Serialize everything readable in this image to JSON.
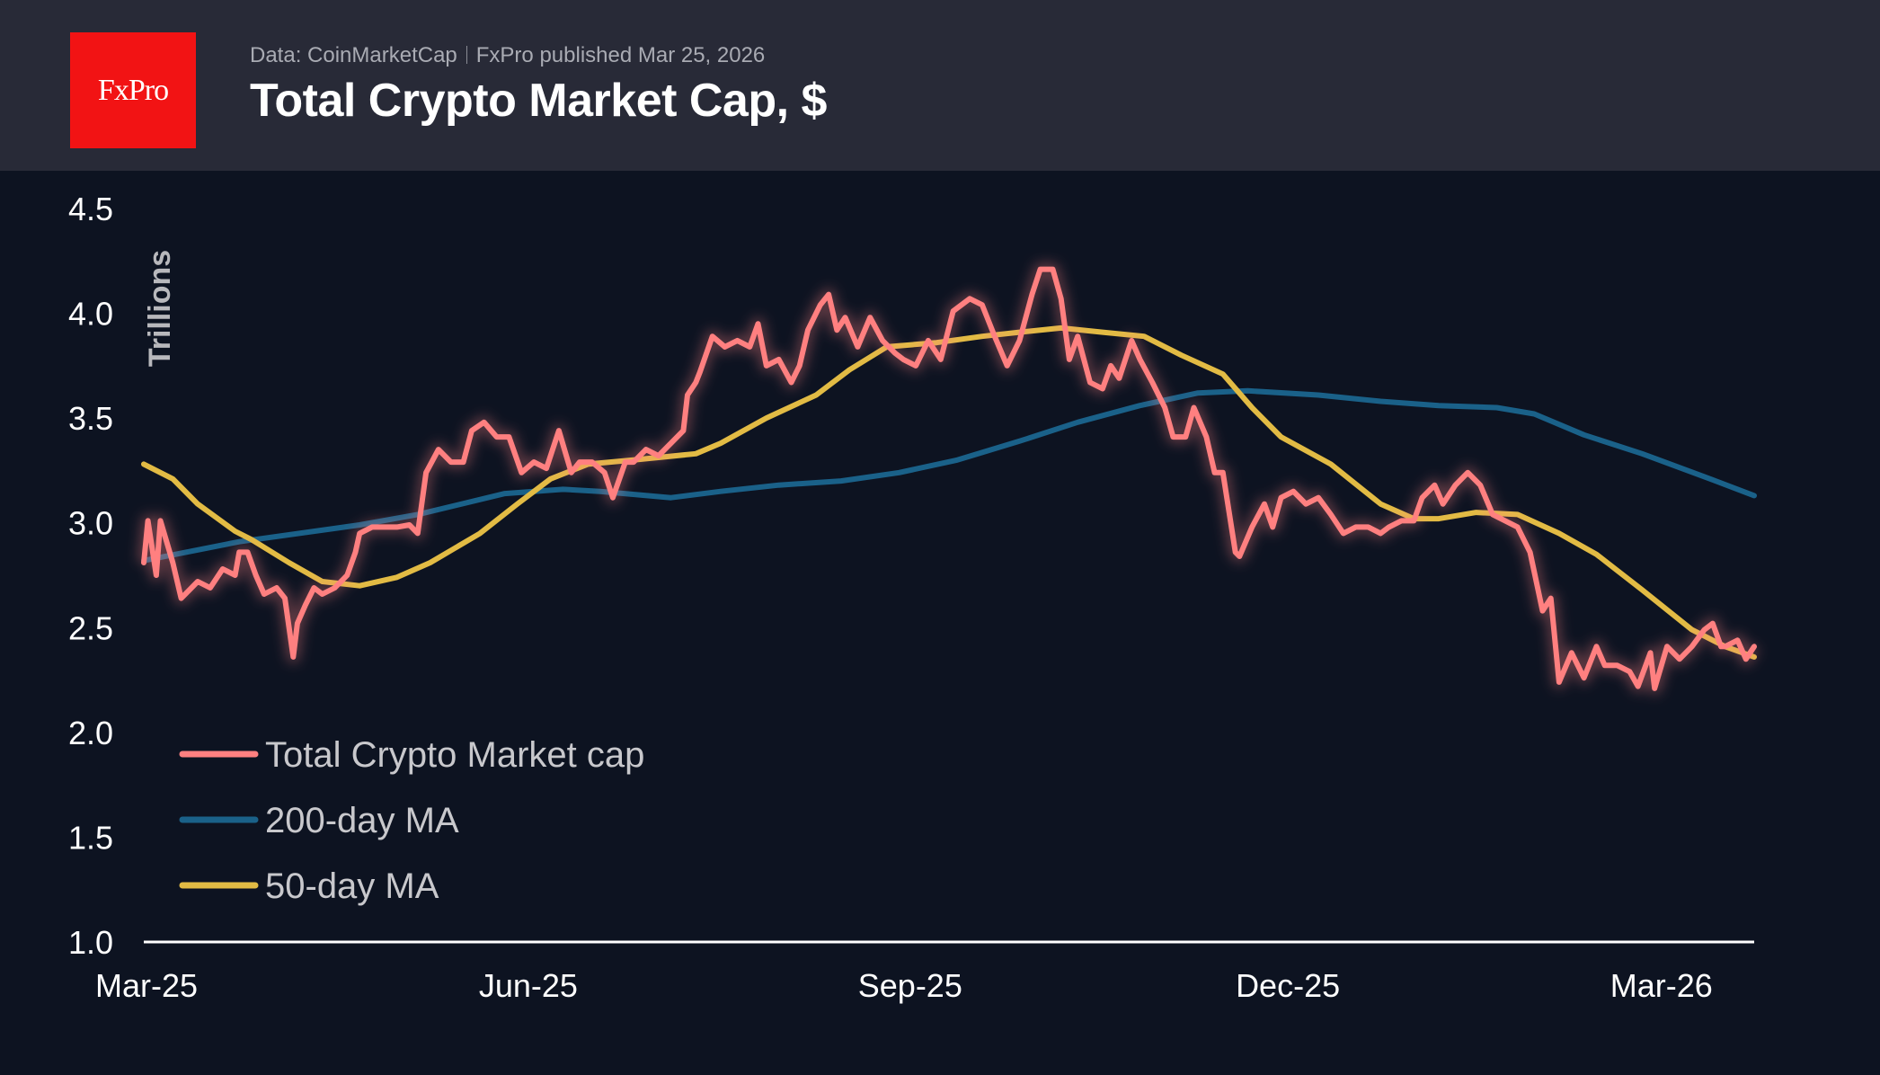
{
  "header": {
    "logo_text": "FxPro",
    "source": "Data: CoinMarketCap",
    "published": "FxPro published Mar 25, 2026",
    "title": "Total Crypto Market Cap, $"
  },
  "colors": {
    "header_bg": "#282a37",
    "background": "#0d1321",
    "logo": "#f21314"
  },
  "chart_data": {
    "type": "line",
    "title": "Total Crypto Market Cap, $",
    "xlabel": "",
    "ylabel": "Trillions",
    "ylim": [
      1.0,
      4.5
    ],
    "xlim": [
      "2025-03-01",
      "2026-03-24"
    ],
    "yticks": [
      "1.0",
      "1.5",
      "2.0",
      "2.5",
      "3.0",
      "3.5",
      "4.0",
      "4.5"
    ],
    "xticks": [
      {
        "label": "Mar-25",
        "date": "2025-03-01"
      },
      {
        "label": "Jun-25",
        "date": "2025-06-01"
      },
      {
        "label": "Sep-25",
        "date": "2025-09-01"
      },
      {
        "label": "Dec-25",
        "date": "2025-12-01"
      },
      {
        "label": "Mar-26",
        "date": "2026-03-01"
      }
    ],
    "grid": false,
    "legend_position": "bottom-left",
    "series": [
      {
        "name": "Total Crypto Market cap",
        "color": "#ff8080",
        "glow": true,
        "x": [
          "2025-03-01",
          "2025-03-02",
          "2025-03-04",
          "2025-03-05",
          "2025-03-08",
          "2025-03-10",
          "2025-03-11",
          "2025-03-14",
          "2025-03-17",
          "2025-03-20",
          "2025-03-23",
          "2025-03-24",
          "2025-03-26",
          "2025-03-28",
          "2025-03-30",
          "2025-04-02",
          "2025-04-04",
          "2025-04-06",
          "2025-04-07",
          "2025-04-09",
          "2025-04-11",
          "2025-04-13",
          "2025-04-16",
          "2025-04-19",
          "2025-04-21",
          "2025-04-22",
          "2025-04-25",
          "2025-04-28",
          "2025-05-01",
          "2025-05-04",
          "2025-05-06",
          "2025-05-08",
          "2025-05-11",
          "2025-05-14",
          "2025-05-17",
          "2025-05-19",
          "2025-05-22",
          "2025-05-25",
          "2025-05-28",
          "2025-05-31",
          "2025-06-03",
          "2025-06-06",
          "2025-06-09",
          "2025-06-12",
          "2025-06-14",
          "2025-06-17",
          "2025-06-20",
          "2025-06-22",
          "2025-06-25",
          "2025-06-27",
          "2025-06-30",
          "2025-07-03",
          "2025-07-06",
          "2025-07-09",
          "2025-07-10",
          "2025-07-12",
          "2025-07-13",
          "2025-07-16",
          "2025-07-19",
          "2025-07-22",
          "2025-07-25",
          "2025-07-27",
          "2025-07-29",
          "2025-08-01",
          "2025-08-04",
          "2025-08-06",
          "2025-08-08",
          "2025-08-11",
          "2025-08-13",
          "2025-08-15",
          "2025-08-17",
          "2025-08-20",
          "2025-08-23",
          "2025-08-26",
          "2025-08-29",
          "2025-08-31",
          "2025-09-03",
          "2025-09-06",
          "2025-09-09",
          "2025-09-12",
          "2025-09-16",
          "2025-09-19",
          "2025-09-22",
          "2025-09-25",
          "2025-09-28",
          "2025-10-01",
          "2025-10-03",
          "2025-10-06",
          "2025-10-08",
          "2025-10-10",
          "2025-10-12",
          "2025-10-15",
          "2025-10-18",
          "2025-10-20",
          "2025-10-22",
          "2025-10-25",
          "2025-10-27",
          "2025-10-30",
          "2025-11-02",
          "2025-11-04",
          "2025-11-07",
          "2025-11-09",
          "2025-11-12",
          "2025-11-14",
          "2025-11-16",
          "2025-11-19",
          "2025-11-20",
          "2025-11-23",
          "2025-11-26",
          "2025-11-28",
          "2025-11-30",
          "2025-12-03",
          "2025-12-06",
          "2025-12-09",
          "2025-12-12",
          "2025-12-15",
          "2025-12-18",
          "2025-12-21",
          "2025-12-24",
          "2025-12-26",
          "2025-12-29",
          "2026-01-01",
          "2026-01-03",
          "2026-01-06",
          "2026-01-08",
          "2026-01-11",
          "2026-01-14",
          "2026-01-17",
          "2026-01-20",
          "2026-01-23",
          "2026-01-26",
          "2026-01-29",
          "2026-02-01",
          "2026-02-03",
          "2026-02-05",
          "2026-02-08",
          "2026-02-11",
          "2026-02-14",
          "2026-02-16",
          "2026-02-19",
          "2026-02-22",
          "2026-02-24",
          "2026-02-27",
          "2026-02-28",
          "2026-03-03",
          "2026-03-06",
          "2026-03-09",
          "2026-03-12",
          "2026-03-14",
          "2026-03-16",
          "2026-03-17",
          "2026-03-20",
          "2026-03-22",
          "2026-03-24"
        ],
        "values": [
          2.81,
          3.01,
          2.75,
          3.01,
          2.81,
          2.64,
          2.66,
          2.72,
          2.69,
          2.78,
          2.75,
          2.86,
          2.86,
          2.75,
          2.66,
          2.69,
          2.64,
          2.36,
          2.52,
          2.61,
          2.69,
          2.66,
          2.69,
          2.75,
          2.86,
          2.95,
          2.98,
          2.98,
          2.98,
          2.99,
          2.95,
          3.24,
          3.35,
          3.29,
          3.29,
          3.44,
          3.48,
          3.41,
          3.41,
          3.24,
          3.29,
          3.26,
          3.44,
          3.24,
          3.29,
          3.29,
          3.24,
          3.12,
          3.29,
          3.29,
          3.35,
          3.32,
          3.38,
          3.44,
          3.61,
          3.67,
          3.72,
          3.89,
          3.84,
          3.87,
          3.84,
          3.95,
          3.75,
          3.78,
          3.67,
          3.75,
          3.92,
          4.04,
          4.09,
          3.92,
          3.98,
          3.84,
          3.98,
          3.87,
          3.81,
          3.78,
          3.75,
          3.87,
          3.78,
          4.01,
          4.07,
          4.04,
          3.89,
          3.75,
          3.87,
          4.09,
          4.21,
          4.21,
          4.07,
          3.78,
          3.89,
          3.67,
          3.64,
          3.75,
          3.69,
          3.87,
          3.78,
          3.67,
          3.55,
          3.41,
          3.41,
          3.55,
          3.41,
          3.24,
          3.24,
          2.86,
          2.84,
          2.98,
          3.09,
          2.98,
          3.12,
          3.15,
          3.09,
          3.12,
          3.04,
          2.95,
          2.98,
          2.98,
          2.95,
          2.98,
          3.01,
          3.01,
          3.12,
          3.18,
          3.09,
          3.18,
          3.24,
          3.18,
          3.04,
          3.01,
          2.98,
          2.86,
          2.58,
          2.64,
          2.24,
          2.38,
          2.26,
          2.41,
          2.32,
          2.32,
          2.29,
          2.22,
          2.38,
          2.21,
          2.41,
          2.35,
          2.41,
          2.49,
          2.52,
          2.41,
          2.41,
          2.44,
          2.35,
          2.41
        ]
      },
      {
        "name": "200-day MA",
        "color": "#1a6189",
        "glow": false,
        "x": [
          "2025-03-01",
          "2025-03-24",
          "2025-04-22",
          "2025-05-06",
          "2025-05-27",
          "2025-06-10",
          "2025-06-19",
          "2025-07-06",
          "2025-07-18",
          "2025-08-01",
          "2025-08-16",
          "2025-08-30",
          "2025-09-13",
          "2025-09-28",
          "2025-10-12",
          "2025-10-27",
          "2025-11-10",
          "2025-11-22",
          "2025-12-09",
          "2025-12-24",
          "2026-01-07",
          "2026-01-21",
          "2026-01-30",
          "2026-02-11",
          "2026-02-25",
          "2026-03-12",
          "2026-03-24"
        ],
        "values": [
          2.82,
          2.91,
          2.99,
          3.04,
          3.14,
          3.16,
          3.15,
          3.12,
          3.15,
          3.18,
          3.2,
          3.24,
          3.3,
          3.39,
          3.48,
          3.56,
          3.62,
          3.63,
          3.61,
          3.58,
          3.56,
          3.55,
          3.52,
          3.42,
          3.33,
          3.22,
          3.13
        ]
      },
      {
        "name": "50-day MA",
        "color": "#e2bb44",
        "glow": false,
        "x": [
          "2025-03-01",
          "2025-03-08",
          "2025-03-14",
          "2025-03-23",
          "2025-03-27",
          "2025-04-05",
          "2025-04-13",
          "2025-04-22",
          "2025-05-01",
          "2025-05-09",
          "2025-05-21",
          "2025-05-30",
          "2025-06-07",
          "2025-06-16",
          "2025-06-27",
          "2025-07-12",
          "2025-07-18",
          "2025-07-29",
          "2025-08-10",
          "2025-08-18",
          "2025-08-27",
          "2025-09-08",
          "2025-09-19",
          "2025-09-28",
          "2025-10-08",
          "2025-10-18",
          "2025-10-28",
          "2025-11-06",
          "2025-11-16",
          "2025-11-23",
          "2025-11-30",
          "2025-12-12",
          "2025-12-24",
          "2026-01-01",
          "2026-01-07",
          "2026-01-16",
          "2026-01-26",
          "2026-02-05",
          "2026-02-14",
          "2026-02-25",
          "2026-03-09",
          "2026-03-17",
          "2026-03-24"
        ],
        "values": [
          3.28,
          3.21,
          3.09,
          2.96,
          2.92,
          2.81,
          2.72,
          2.7,
          2.74,
          2.81,
          2.95,
          3.09,
          3.21,
          3.28,
          3.3,
          3.33,
          3.38,
          3.5,
          3.61,
          3.73,
          3.84,
          3.86,
          3.89,
          3.91,
          3.93,
          3.91,
          3.89,
          3.8,
          3.71,
          3.55,
          3.41,
          3.28,
          3.09,
          3.02,
          3.02,
          3.05,
          3.04,
          2.95,
          2.85,
          2.68,
          2.49,
          2.41,
          2.36
        ]
      }
    ]
  }
}
